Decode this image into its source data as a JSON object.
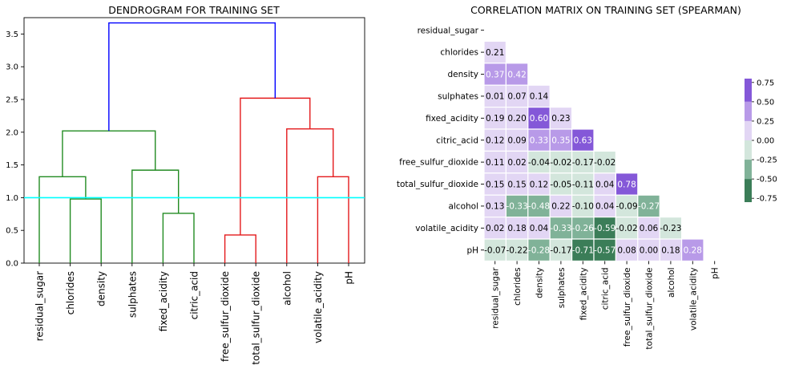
{
  "chart_data": [
    {
      "type": "dendrogram",
      "title": "DENDROGRAM FOR TRAINING SET",
      "leaves": [
        "residual_sugar",
        "chlorides",
        "density",
        "sulphates",
        "fixed_acidity",
        "citric_acid",
        "free_sulfur_dioxide",
        "total_sulfur_dioxide",
        "alcohol",
        "volatile_acidity",
        "pH"
      ],
      "ylim": [
        0,
        3.75
      ],
      "yticks": [
        "0.0",
        "0.5",
        "1.0",
        "1.5",
        "2.0",
        "2.5",
        "3.0",
        "3.5"
      ],
      "threshold": 1.0,
      "colors": {
        "cluster_a": "#228b22",
        "cluster_b": "#e41a1c",
        "root": "#0000ff",
        "threshold": "#00ffff"
      },
      "links": [
        {
          "a": 1,
          "b": 2,
          "h": 0.98,
          "c": "cluster_a"
        },
        {
          "a": 0,
          "b": 1.5,
          "h": 1.32,
          "c": "cluster_a"
        },
        {
          "a": 4,
          "b": 5,
          "h": 0.76,
          "c": "cluster_a"
        },
        {
          "a": 3,
          "b": 4.5,
          "h": 1.42,
          "c": "cluster_a"
        },
        {
          "a": 0.75,
          "b": 3.75,
          "h": 2.02,
          "c": "cluster_a"
        },
        {
          "a": 6,
          "b": 7,
          "h": 0.43,
          "c": "cluster_b"
        },
        {
          "a": 9,
          "b": 10,
          "h": 1.32,
          "c": "cluster_b"
        },
        {
          "a": 8,
          "b": 9.5,
          "h": 2.05,
          "c": "cluster_b"
        },
        {
          "a": 6.5,
          "b": 8.75,
          "h": 2.52,
          "c": "cluster_b"
        },
        {
          "a": 2.25,
          "b": 7.625,
          "h": 3.67,
          "c": "root"
        }
      ]
    },
    {
      "type": "heatmap",
      "title": "CORRELATION MATRIX ON TRAINING SET (SPEARMAN)",
      "labels": [
        "residual_sugar",
        "chlorides",
        "density",
        "sulphates",
        "fixed_acidity",
        "citric_acid",
        "free_sulfur_dioxide",
        "total_sulfur_dioxide",
        "alcohol",
        "volatile_acidity",
        "pH"
      ],
      "matrix": [
        [],
        [
          0.21
        ],
        [
          0.37,
          0.42
        ],
        [
          0.01,
          0.07,
          0.14
        ],
        [
          0.19,
          0.2,
          0.6,
          0.23
        ],
        [
          0.12,
          0.09,
          0.33,
          0.35,
          0.63
        ],
        [
          0.11,
          0.02,
          -0.04,
          -0.02,
          -0.17,
          -0.02
        ],
        [
          0.15,
          0.15,
          0.12,
          -0.05,
          -0.11,
          0.04,
          0.78
        ],
        [
          0.13,
          -0.33,
          -0.48,
          0.22,
          -0.1,
          0.04,
          -0.09,
          -0.27
        ],
        [
          0.02,
          0.18,
          0.04,
          -0.33,
          -0.26,
          -0.59,
          -0.02,
          0.06,
          -0.23
        ],
        [
          -0.07,
          -0.22,
          -0.28,
          -0.17,
          -0.71,
          -0.57,
          0.08,
          -0.0,
          0.18,
          0.28
        ]
      ],
      "colorbar": {
        "ticks": [
          "0.75",
          "0.50",
          "0.25",
          "0.00",
          "-0.25",
          "-0.50",
          "-0.75"
        ],
        "bins": [
          {
            "max": 99,
            "color": "#8458d8"
          },
          {
            "max": 0.5,
            "color": "#b89ae8"
          },
          {
            "max": 0.25,
            "color": "#e2d6f4"
          },
          {
            "max": 0.0,
            "color": "#d3e6dc"
          },
          {
            "max": -0.25,
            "color": "#80b298"
          },
          {
            "max": -0.5,
            "color": "#3b7d58"
          }
        ]
      }
    }
  ]
}
